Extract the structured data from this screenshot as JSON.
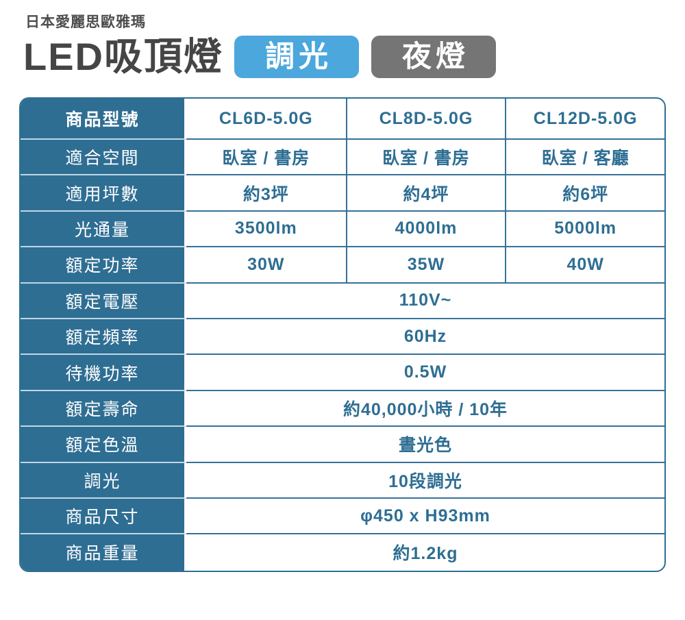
{
  "header": {
    "brand": "日本愛麗思歐雅瑪",
    "title": "LED吸頂燈",
    "badges": {
      "dimming": {
        "label": "調光",
        "color": "#4BA7DC"
      },
      "night_light": {
        "label": "夜燈",
        "color": "#757575"
      }
    }
  },
  "table": {
    "colors": {
      "label_column_bg": "#2F6E93",
      "value_text": "#2E6E93",
      "grid_border": "#35719A",
      "label_divider": "#BFD8E6"
    },
    "rows": [
      {
        "label": "商品型號",
        "values": [
          "CL6D-5.0G",
          "CL8D-5.0G",
          "CL12D-5.0G"
        ]
      },
      {
        "label": "適合空間",
        "values": [
          "臥室 / 書房",
          "臥室 / 書房",
          "臥室 / 客廳"
        ]
      },
      {
        "label": "適用坪數",
        "values": [
          "約3坪",
          "約4坪",
          "約6坪"
        ]
      },
      {
        "label": "光通量",
        "values": [
          "3500lm",
          "4000lm",
          "5000lm"
        ]
      },
      {
        "label": "額定功率",
        "values": [
          "30W",
          "35W",
          "40W"
        ]
      },
      {
        "label": "額定電壓",
        "span_value": "110V~"
      },
      {
        "label": "額定頻率",
        "span_value": "60Hz"
      },
      {
        "label": "待機功率",
        "span_value": "0.5W"
      },
      {
        "label": "額定壽命",
        "span_value": "約40,000小時 / 10年"
      },
      {
        "label": "額定色溫",
        "span_value": "晝光色"
      },
      {
        "label": "調光",
        "span_value": "10段調光"
      },
      {
        "label": "商品尺寸",
        "span_value": "φ450 x H93mm"
      },
      {
        "label": "商品重量",
        "span_value": "約1.2kg"
      }
    ]
  }
}
